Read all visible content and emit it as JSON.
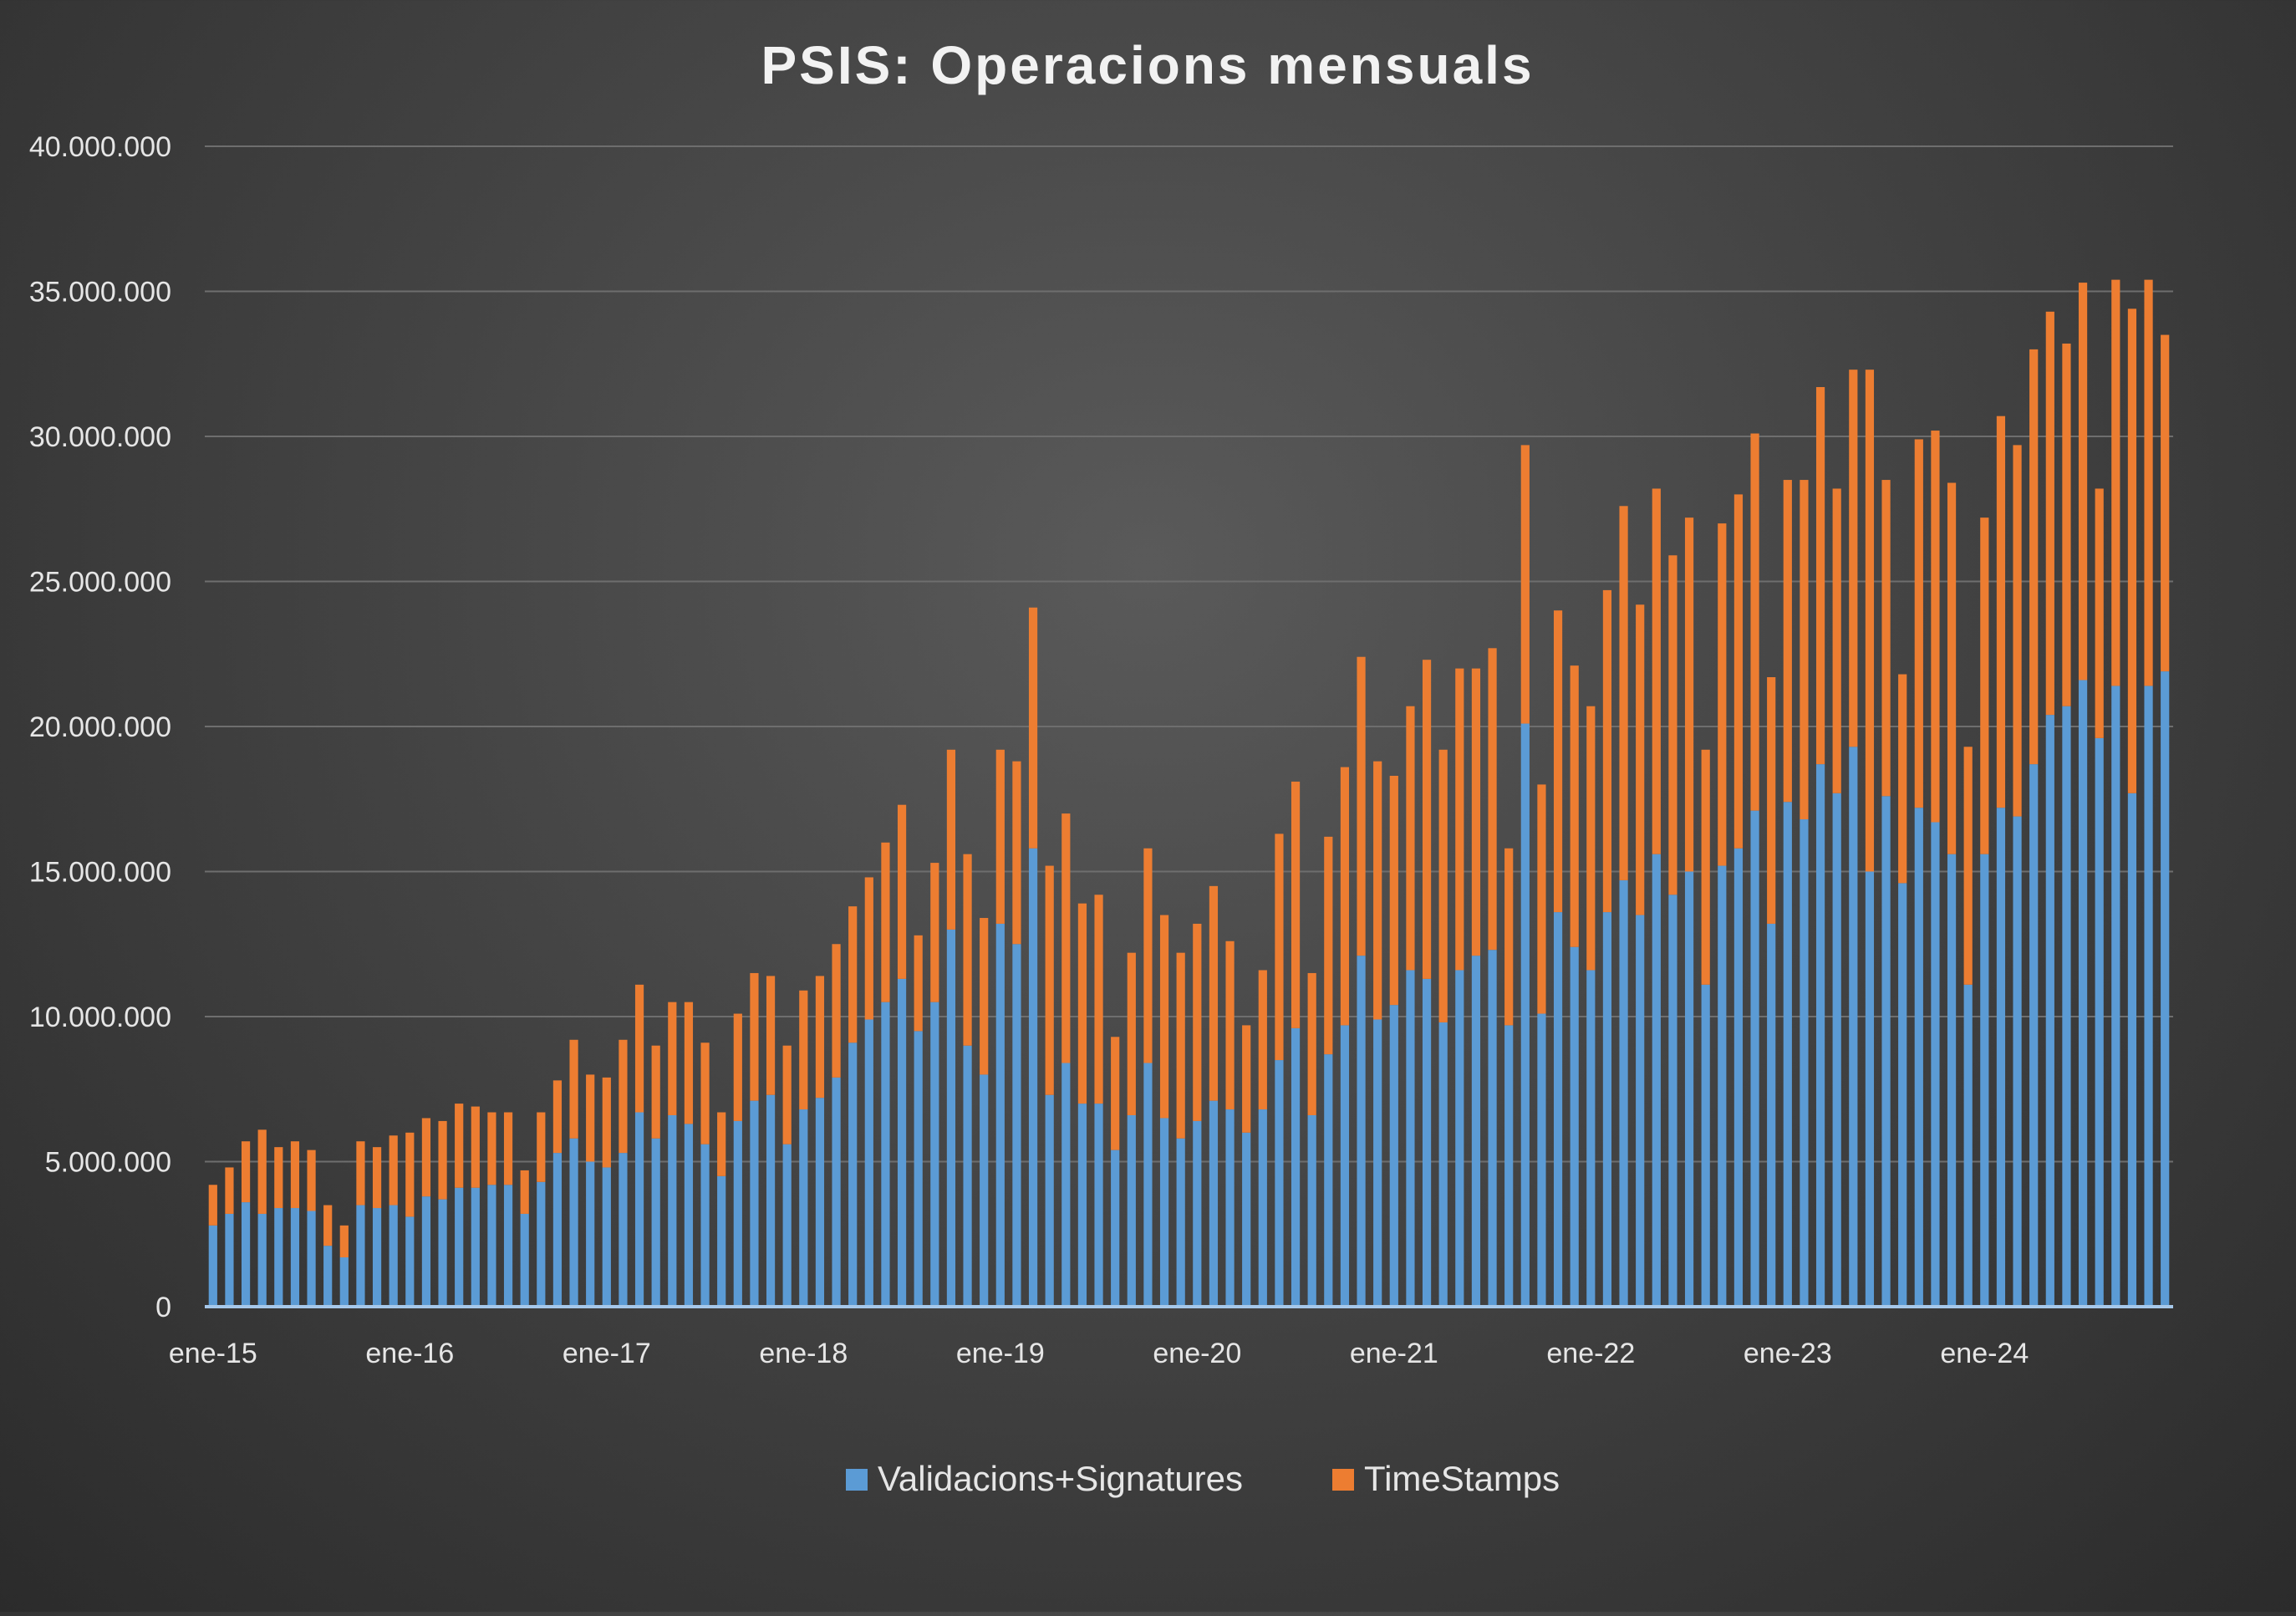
{
  "chart_data": {
    "type": "bar",
    "stacked": true,
    "title": "PSIS: Operacions mensuals",
    "xlabel": "",
    "ylabel": "",
    "ylim": [
      0,
      40000000
    ],
    "y_ticks": [
      0,
      5000000,
      10000000,
      15000000,
      20000000,
      25000000,
      30000000,
      35000000,
      40000000
    ],
    "y_tick_labels": [
      "0",
      "5.000.000",
      "10.000.000",
      "15.000.000",
      "20.000.000",
      "25.000.000",
      "30.000.000",
      "35.000.000",
      "40.000.000"
    ],
    "x_tick_labels": [
      "ene-15",
      "ene-16",
      "ene-17",
      "ene-18",
      "ene-19",
      "ene-20",
      "ene-21",
      "ene-22",
      "ene-23",
      "ene-24"
    ],
    "x_tick_every": 12,
    "grid": true,
    "legend_position": "bottom",
    "series": [
      {
        "name": "Validacions+Signatures",
        "color": "#5b9bd5",
        "values": [
          2800000,
          3200000,
          3600000,
          3200000,
          3400000,
          3400000,
          3300000,
          2100000,
          1700000,
          3500000,
          3400000,
          3500000,
          3100000,
          3800000,
          3700000,
          4100000,
          4100000,
          4200000,
          4200000,
          3200000,
          4300000,
          5300000,
          5800000,
          5000000,
          4800000,
          5300000,
          6700000,
          5800000,
          6600000,
          6300000,
          5600000,
          4500000,
          6400000,
          7100000,
          7300000,
          5600000,
          6800000,
          7200000,
          7900000,
          9100000,
          9900000,
          10500000,
          11300000,
          9500000,
          10500000,
          13000000,
          9000000,
          8000000,
          13200000,
          12500000,
          15800000,
          7300000,
          8400000,
          7000000,
          7000000,
          5400000,
          6600000,
          8400000,
          6500000,
          5800000,
          6400000,
          7100000,
          6800000,
          6000000,
          6800000,
          8500000,
          9600000,
          6600000,
          8700000,
          9700000,
          12100000,
          9900000,
          10400000,
          11600000,
          11300000,
          9800000,
          11600000,
          12100000,
          12300000,
          9700000,
          20100000,
          10100000,
          13600000,
          12400000,
          11600000,
          13600000,
          14700000,
          13500000,
          15600000,
          14200000,
          15000000,
          11100000,
          15200000,
          15800000,
          17100000,
          13200000,
          17400000,
          16800000,
          18700000,
          17700000,
          19300000,
          15000000,
          17600000,
          14600000,
          17200000,
          16700000,
          15600000,
          11100000,
          15600000,
          17200000,
          16900000,
          18700000,
          20400000,
          20700000,
          21600000,
          19600000,
          21400000,
          17700000,
          21400000,
          21900000
        ]
      },
      {
        "name": "TimeStamps",
        "color": "#ed7d31",
        "values": [
          1400000,
          1600000,
          2100000,
          2900000,
          2100000,
          2300000,
          2100000,
          1400000,
          1100000,
          2200000,
          2100000,
          2400000,
          2900000,
          2700000,
          2700000,
          2900000,
          2800000,
          2500000,
          2500000,
          1500000,
          2400000,
          2500000,
          3400000,
          3000000,
          3100000,
          3900000,
          4400000,
          3200000,
          3900000,
          4200000,
          3500000,
          2200000,
          3700000,
          4400000,
          4100000,
          3400000,
          4100000,
          4200000,
          4600000,
          4700000,
          4900000,
          5500000,
          6000000,
          3300000,
          4800000,
          6200000,
          6600000,
          5400000,
          6000000,
          6300000,
          8300000,
          7900000,
          8600000,
          6900000,
          7200000,
          3900000,
          5600000,
          7400000,
          7000000,
          6400000,
          6800000,
          7400000,
          5800000,
          3700000,
          4800000,
          7800000,
          8500000,
          4900000,
          7500000,
          8900000,
          10300000,
          8900000,
          7900000,
          9100000,
          11000000,
          9400000,
          10400000,
          9900000,
          10400000,
          6100000,
          9600000,
          7900000,
          10400000,
          9700000,
          9100000,
          11100000,
          12900000,
          10700000,
          12600000,
          11700000,
          12200000,
          8100000,
          11800000,
          12200000,
          13000000,
          8500000,
          11100000,
          11700000,
          13000000,
          10500000,
          13000000,
          17300000,
          10900000,
          7200000,
          12700000,
          13500000,
          12800000,
          8200000,
          11600000,
          13500000,
          12800000,
          14300000,
          13900000,
          12500000,
          13700000,
          8600000,
          14000000,
          16700000,
          14000000,
          11600000
        ]
      }
    ]
  }
}
